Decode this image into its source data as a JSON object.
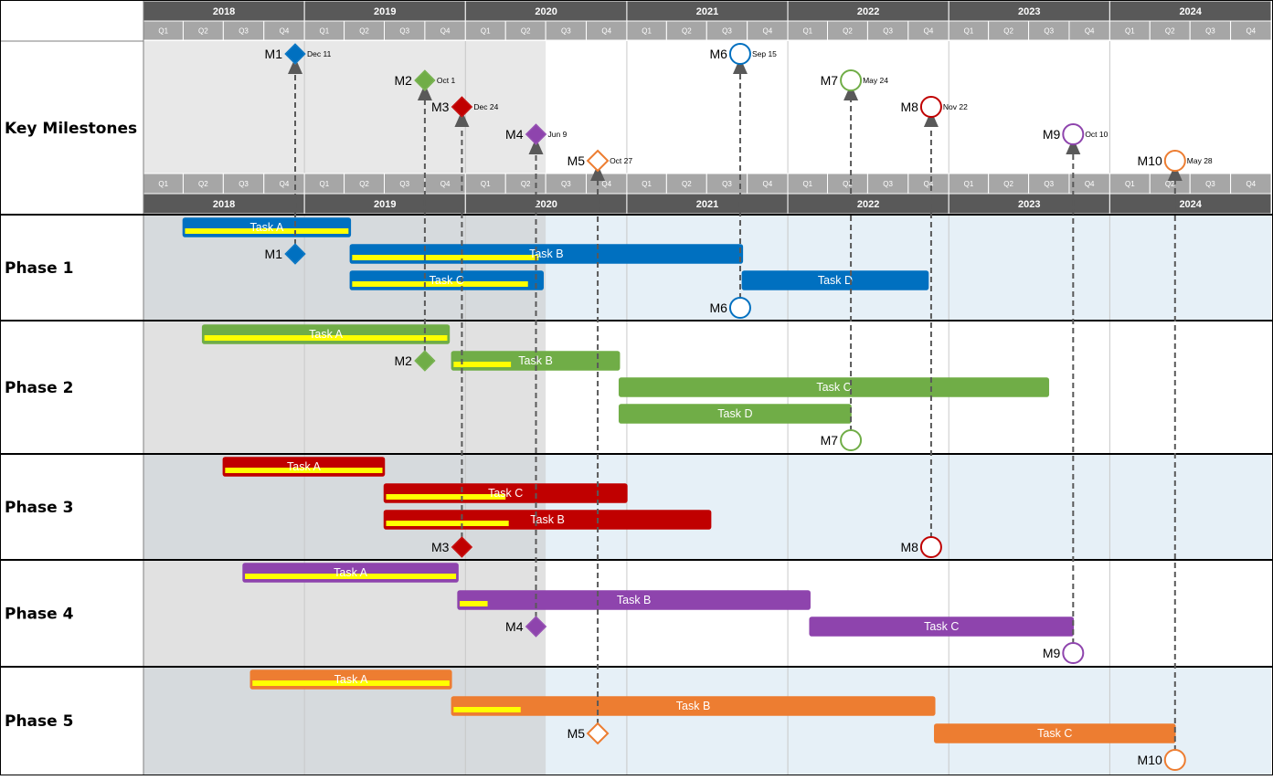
{
  "timeline": {
    "years": [
      "2018",
      "2019",
      "2020",
      "2021",
      "2022",
      "2023",
      "2024"
    ],
    "quarter_labels": [
      "Q1",
      "Q2",
      "Q3",
      "Q4"
    ],
    "range": [
      "2018-01-01",
      "2024-12-31"
    ],
    "shaded_until": "2020-07-01"
  },
  "colors": {
    "blue": "#0070c0",
    "green": "#70ad47",
    "red": "#c00000",
    "purple": "#8e44ad",
    "orange": "#ed7d31",
    "progress": "#ffff00",
    "header_dark": "#595959",
    "header_light": "#a6a6a6",
    "shade": "#d9d9d9",
    "band_alt": "#e6f0f7"
  },
  "rows": [
    {
      "id": "key",
      "label": "Key Milestones"
    },
    {
      "id": "p1",
      "label": "Phase 1"
    },
    {
      "id": "p2",
      "label": "Phase 2"
    },
    {
      "id": "p3",
      "label": "Phase 3"
    },
    {
      "id": "p4",
      "label": "Phase 4"
    },
    {
      "id": "p5",
      "label": "Phase 5"
    }
  ],
  "tasks": [
    {
      "phase": "p1",
      "label": "Task A",
      "start": "2018-04-01",
      "end": "2019-04-15",
      "progress": 1.0,
      "color": "blue",
      "lane": 0
    },
    {
      "phase": "p1",
      "label": "Task B",
      "start": "2019-04-15",
      "end": "2021-09-20",
      "progress": 0.48,
      "color": "blue",
      "lane": 1
    },
    {
      "phase": "p1",
      "label": "Task C",
      "start": "2019-04-15",
      "end": "2020-06-25",
      "progress": 0.93,
      "color": "blue",
      "lane": 2
    },
    {
      "phase": "p1",
      "label": "Task D",
      "start": "2021-09-20",
      "end": "2022-11-15",
      "progress": 0,
      "color": "blue",
      "lane": 2
    },
    {
      "phase": "p2",
      "label": "Task A",
      "start": "2018-05-15",
      "end": "2019-11-25",
      "progress": 1.0,
      "color": "green",
      "lane": 0
    },
    {
      "phase": "p2",
      "label": "Task B",
      "start": "2019-12-01",
      "end": "2020-12-15",
      "progress": 0.35,
      "color": "green",
      "lane": 1
    },
    {
      "phase": "p2",
      "label": "Task C",
      "start": "2020-12-15",
      "end": "2023-08-15",
      "progress": 0,
      "color": "green",
      "lane": 2
    },
    {
      "phase": "p2",
      "label": "Task D",
      "start": "2020-12-15",
      "end": "2022-05-24",
      "progress": 0,
      "color": "green",
      "lane": 3
    },
    {
      "phase": "p3",
      "label": "Task A",
      "start": "2018-07-01",
      "end": "2019-07-01",
      "progress": 1.0,
      "color": "red",
      "lane": 0
    },
    {
      "phase": "p3",
      "label": "Task C",
      "start": "2019-07-01",
      "end": "2021-01-01",
      "progress": 0.5,
      "color": "red",
      "lane": 1
    },
    {
      "phase": "p3",
      "label": "Task B",
      "start": "2019-07-01",
      "end": "2021-07-10",
      "progress": 0.38,
      "color": "red",
      "lane": 2
    },
    {
      "phase": "p4",
      "label": "Task A",
      "start": "2018-08-15",
      "end": "2019-12-15",
      "progress": 1.0,
      "color": "purple",
      "lane": 0
    },
    {
      "phase": "p4",
      "label": "Task B",
      "start": "2019-12-15",
      "end": "2022-02-20",
      "progress": 0.08,
      "color": "purple",
      "lane": 1
    },
    {
      "phase": "p4",
      "label": "Task C",
      "start": "2022-02-20",
      "end": "2023-10-10",
      "progress": 0,
      "color": "purple",
      "lane": 2
    },
    {
      "phase": "p5",
      "label": "Task A",
      "start": "2018-09-01",
      "end": "2019-11-30",
      "progress": 1.0,
      "color": "orange",
      "lane": 0
    },
    {
      "phase": "p5",
      "label": "Task B",
      "start": "2019-12-01",
      "end": "2022-11-30",
      "progress": 0.14,
      "color": "orange",
      "lane": 1
    },
    {
      "phase": "p5",
      "label": "Task C",
      "start": "2022-11-30",
      "end": "2024-05-28",
      "progress": 0,
      "color": "orange",
      "lane": 2
    }
  ],
  "milestones": [
    {
      "id": "M1",
      "date": "2018-12-11",
      "date_label": "Dec 11",
      "shape": "diamond",
      "filled": true,
      "color": "blue",
      "phase": "p1",
      "lane": 1
    },
    {
      "id": "M2",
      "date": "2019-10-01",
      "date_label": "Oct 1",
      "shape": "diamond",
      "filled": true,
      "color": "green",
      "phase": "p2",
      "lane": 1
    },
    {
      "id": "M3",
      "date": "2019-12-24",
      "date_label": "Dec 24",
      "shape": "diamond",
      "filled": true,
      "color": "red",
      "phase": "p3",
      "lane": 3
    },
    {
      "id": "M4",
      "date": "2020-06-09",
      "date_label": "Jun 9",
      "shape": "diamond",
      "filled": true,
      "color": "purple",
      "phase": "p4",
      "lane": 2
    },
    {
      "id": "M5",
      "date": "2020-10-27",
      "date_label": "Oct 27",
      "shape": "diamond",
      "filled": false,
      "color": "orange",
      "phase": "p5",
      "lane": 2
    },
    {
      "id": "M6",
      "date": "2021-09-15",
      "date_label": "Sep 15",
      "shape": "circle",
      "filled": false,
      "color": "blue",
      "phase": "p1",
      "lane": 3
    },
    {
      "id": "M7",
      "date": "2022-05-24",
      "date_label": "May 24",
      "shape": "circle",
      "filled": false,
      "color": "green",
      "phase": "p2",
      "lane": 4
    },
    {
      "id": "M8",
      "date": "2022-11-22",
      "date_label": "Nov 22",
      "shape": "circle",
      "filled": false,
      "color": "red",
      "phase": "p3",
      "lane": 3
    },
    {
      "id": "M9",
      "date": "2023-10-10",
      "date_label": "Oct 10",
      "shape": "circle",
      "filled": false,
      "color": "purple",
      "phase": "p4",
      "lane": 3
    },
    {
      "id": "M10",
      "date": "2024-05-28",
      "date_label": "May 28",
      "shape": "circle",
      "filled": false,
      "color": "orange",
      "phase": "p5",
      "lane": 3
    }
  ]
}
